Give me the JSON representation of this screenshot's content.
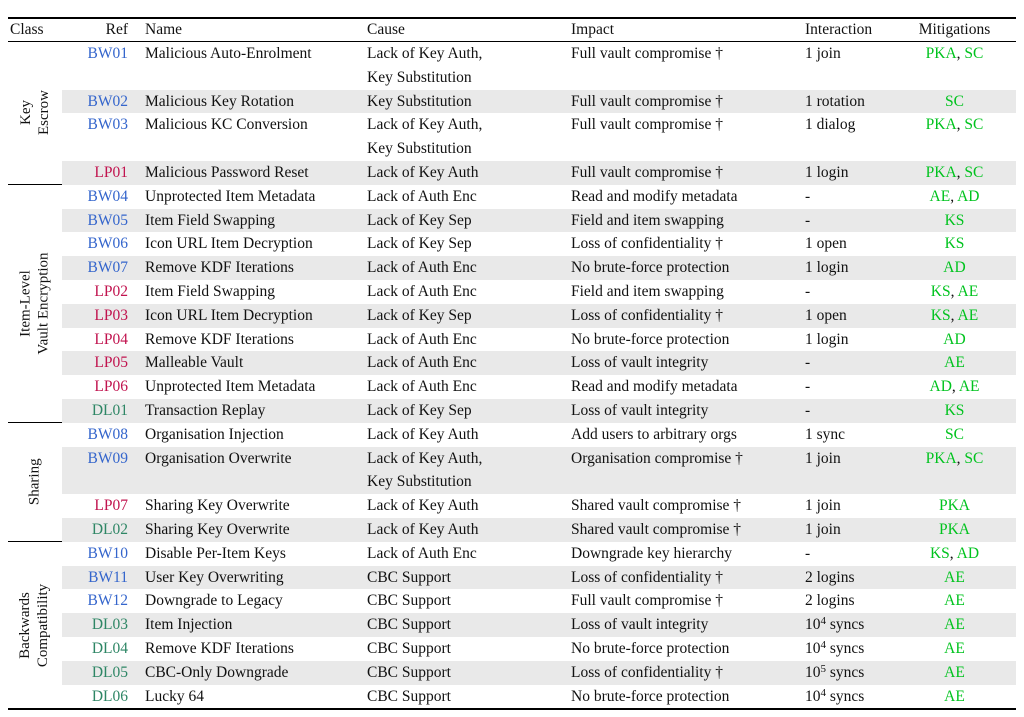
{
  "colors": {
    "ref_bw": "#3465CC",
    "ref_lp": "#C1134E",
    "ref_dl": "#2E8665",
    "mitigation": "#00C31E",
    "stripe": "#E9E9E9",
    "rule": "#000000",
    "text": "#111111"
  },
  "table": {
    "headers": [
      "Class",
      "Ref",
      "Name",
      "Cause",
      "Impact",
      "Interaction",
      "Mitigations"
    ],
    "sections": [
      {
        "class_lines": [
          "Key",
          "Escrow"
        ],
        "rows": [
          {
            "ref": "BW01",
            "name": "Malicious Auto-Enrolment",
            "cause": "Lack of Key Auth,\nKey Substitution",
            "impact": "Full vault compromise †",
            "interaction": "1 join",
            "mitigations": [
              "PKA",
              "SC"
            ]
          },
          {
            "ref": "BW02",
            "name": "Malicious Key Rotation",
            "cause": "Key Substitution",
            "impact": "Full vault compromise †",
            "interaction": "1 rotation",
            "mitigations": [
              "SC"
            ]
          },
          {
            "ref": "BW03",
            "name": "Malicious KC Conversion",
            "cause": "Lack of Key Auth,\nKey Substitution",
            "impact": "Full vault compromise †",
            "interaction": "1 dialog",
            "mitigations": [
              "PKA",
              "SC"
            ]
          },
          {
            "ref": "LP01",
            "name": "Malicious Password Reset",
            "cause": "Lack of Key Auth",
            "impact": "Full vault compromise †",
            "interaction": "1 login",
            "mitigations": [
              "PKA",
              "SC"
            ]
          }
        ]
      },
      {
        "class_lines": [
          "Item-Level",
          "Vault Encryption"
        ],
        "rows": [
          {
            "ref": "BW04",
            "name": "Unprotected Item Metadata",
            "cause": "Lack of Auth Enc",
            "impact": "Read and modify metadata",
            "interaction": "-",
            "mitigations": [
              "AE",
              "AD"
            ]
          },
          {
            "ref": "BW05",
            "name": "Item Field Swapping",
            "cause": "Lack of Key Sep",
            "impact": "Field and item swapping",
            "interaction": "-",
            "mitigations": [
              "KS"
            ]
          },
          {
            "ref": "BW06",
            "name": "Icon URL Item Decryption",
            "cause": "Lack of Key Sep",
            "impact": "Loss of confidentiality †",
            "interaction": "1 open",
            "mitigations": [
              "KS"
            ]
          },
          {
            "ref": "BW07",
            "name": "Remove KDF Iterations",
            "cause": "Lack of Auth Enc",
            "impact": "No brute-force protection",
            "interaction": "1 login",
            "mitigations": [
              "AD"
            ]
          },
          {
            "ref": "LP02",
            "name": "Item Field Swapping",
            "cause": "Lack of Auth Enc",
            "impact": "Field and item swapping",
            "interaction": "-",
            "mitigations": [
              "KS",
              "AE"
            ]
          },
          {
            "ref": "LP03",
            "name": "Icon URL Item Decryption",
            "cause": "Lack of Key Sep",
            "impact": "Loss of confidentiality †",
            "interaction": "1 open",
            "mitigations": [
              "KS",
              "AE"
            ]
          },
          {
            "ref": "LP04",
            "name": "Remove KDF Iterations",
            "cause": "Lack of Auth Enc",
            "impact": "No brute-force protection",
            "interaction": "1 login",
            "mitigations": [
              "AD"
            ]
          },
          {
            "ref": "LP05",
            "name": "Malleable Vault",
            "cause": "Lack of Auth Enc",
            "impact": "Loss of vault integrity",
            "interaction": "-",
            "mitigations": [
              "AE"
            ]
          },
          {
            "ref": "LP06",
            "name": "Unprotected Item Metadata",
            "cause": "Lack of Auth Enc",
            "impact": "Read and modify metadata",
            "interaction": "-",
            "mitigations": [
              "AD",
              "AE"
            ]
          },
          {
            "ref": "DL01",
            "name": "Transaction Replay",
            "cause": "Lack of Key Sep",
            "impact": "Loss of vault integrity",
            "interaction": "-",
            "mitigations": [
              "KS"
            ]
          }
        ]
      },
      {
        "class_lines": [
          "Sharing"
        ],
        "rows": [
          {
            "ref": "BW08",
            "name": "Organisation Injection",
            "cause": "Lack of Key Auth",
            "impact": "Add users to arbitrary orgs",
            "interaction": "1 sync",
            "mitigations": [
              "SC"
            ]
          },
          {
            "ref": "BW09",
            "name": "Organisation Overwrite",
            "cause": "Lack of Key Auth,\nKey Substitution",
            "impact": "Organisation compromise †",
            "interaction": "1 join",
            "mitigations": [
              "PKA",
              "SC"
            ]
          },
          {
            "ref": "LP07",
            "name": "Sharing Key Overwrite",
            "cause": "Lack of Key Auth",
            "impact": "Shared vault compromise †",
            "interaction": "1 join",
            "mitigations": [
              "PKA"
            ]
          },
          {
            "ref": "DL02",
            "name": "Sharing Key Overwrite",
            "cause": "Lack of Key Auth",
            "impact": "Shared vault compromise †",
            "interaction": "1 join",
            "mitigations": [
              "PKA"
            ]
          }
        ]
      },
      {
        "class_lines": [
          "Backwards",
          "Compatibility"
        ],
        "rows": [
          {
            "ref": "BW10",
            "name": "Disable Per-Item Keys",
            "cause": "Lack of Auth Enc",
            "impact": "Downgrade key hierarchy",
            "interaction": "-",
            "mitigations": [
              "KS",
              "AD"
            ]
          },
          {
            "ref": "BW11",
            "name": "User Key Overwriting",
            "cause": "CBC Support",
            "impact": "Loss of confidentiality †",
            "interaction": "2 logins",
            "mitigations": [
              "AE"
            ]
          },
          {
            "ref": "BW12",
            "name": "Downgrade to Legacy",
            "cause": "CBC Support",
            "impact": "Full vault compromise †",
            "interaction": "2 logins",
            "mitigations": [
              "AE"
            ]
          },
          {
            "ref": "DL03",
            "name": "Item Injection",
            "cause": "CBC Support",
            "impact": "Loss of vault integrity",
            "interaction": "10^4 syncs",
            "mitigations": [
              "AE"
            ]
          },
          {
            "ref": "DL04",
            "name": "Remove KDF Iterations",
            "cause": "CBC Support",
            "impact": "No brute-force protection",
            "interaction": "10^4 syncs",
            "mitigations": [
              "AE"
            ]
          },
          {
            "ref": "DL05",
            "name": "CBC-Only Downgrade",
            "cause": "CBC Support",
            "impact": "Loss of confidentiality †",
            "interaction": "10^5 syncs",
            "mitigations": [
              "AE"
            ]
          },
          {
            "ref": "DL06",
            "name": "Lucky 64",
            "cause": "CBC Support",
            "impact": "No brute-force protection",
            "interaction": "10^4 syncs",
            "mitigations": [
              "AE"
            ]
          }
        ]
      }
    ]
  }
}
